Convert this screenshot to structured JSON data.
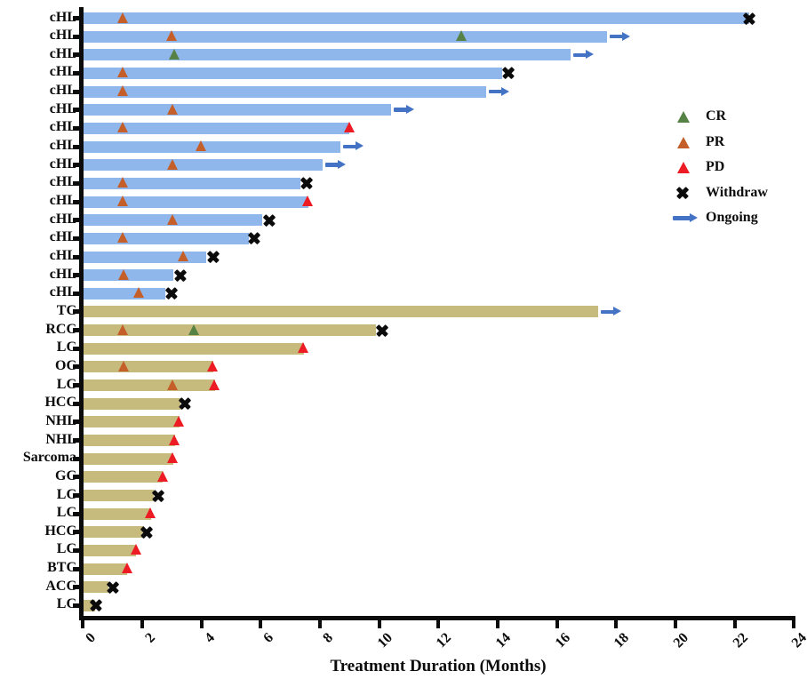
{
  "colors": {
    "bar_chl": "#8fb7eb",
    "bar_other": "#c6ba7d",
    "cr": "#568245",
    "pr": "#c55f2a",
    "pd": "#ed1c24",
    "withdraw": "#0b0b0b",
    "ongoing": "#4472c4",
    "axis": "#0b0b0b"
  },
  "legend": [
    {
      "id": "cr",
      "label": "CR",
      "marker": "triangle",
      "color": "#568245"
    },
    {
      "id": "pr",
      "label": "PR",
      "marker": "triangle",
      "color": "#c55f2a"
    },
    {
      "id": "pd",
      "label": "PD",
      "marker": "triangle",
      "color": "#ed1c24"
    },
    {
      "id": "withdraw",
      "label": "Withdraw",
      "marker": "x",
      "color": "#0b0b0b"
    },
    {
      "id": "ongoing",
      "label": "Ongoing",
      "marker": "arrow",
      "color": "#4472c4"
    }
  ],
  "chart_data": {
    "type": "bar",
    "orientation": "horizontal-swimmer",
    "title": "",
    "xlabel": "Treatment Duration (Months)",
    "ylabel": "",
    "xlim": [
      0,
      24
    ],
    "xticks": [
      0,
      2,
      4,
      6,
      8,
      10,
      12,
      14,
      16,
      18,
      20,
      22,
      24
    ],
    "grid": false,
    "legend_position": "right-upper",
    "rows": [
      {
        "label": "cHL",
        "group": "cHL",
        "duration": 22.5,
        "ongoing": false,
        "markers": [
          {
            "type": "PR",
            "x": 1.35
          },
          {
            "type": "Withdraw",
            "x": 22.5
          }
        ]
      },
      {
        "label": "cHL",
        "group": "cHL",
        "duration": 17.7,
        "ongoing": true,
        "markers": [
          {
            "type": "PR",
            "x": 3.0
          },
          {
            "type": "CR",
            "x": 12.8
          }
        ]
      },
      {
        "label": "cHL",
        "group": "cHL",
        "duration": 16.45,
        "ongoing": true,
        "markers": [
          {
            "type": "CR",
            "x": 3.1
          }
        ]
      },
      {
        "label": "cHL",
        "group": "cHL",
        "duration": 14.15,
        "ongoing": false,
        "markers": [
          {
            "type": "PR",
            "x": 1.35
          },
          {
            "type": "Withdraw",
            "x": 14.35
          }
        ]
      },
      {
        "label": "cHL",
        "group": "cHL",
        "duration": 13.6,
        "ongoing": true,
        "markers": [
          {
            "type": "PR",
            "x": 1.35
          }
        ]
      },
      {
        "label": "cHL",
        "group": "cHL",
        "duration": 10.4,
        "ongoing": true,
        "markers": [
          {
            "type": "PR",
            "x": 3.05
          }
        ]
      },
      {
        "label": "cHL",
        "group": "cHL",
        "duration": 9.0,
        "ongoing": false,
        "markers": [
          {
            "type": "PR",
            "x": 1.35
          },
          {
            "type": "PD",
            "x": 9.0
          }
        ]
      },
      {
        "label": "cHL",
        "group": "cHL",
        "duration": 8.7,
        "ongoing": true,
        "markers": [
          {
            "type": "PR",
            "x": 4.0
          }
        ]
      },
      {
        "label": "cHL",
        "group": "cHL",
        "duration": 8.1,
        "ongoing": true,
        "markers": [
          {
            "type": "PR",
            "x": 3.05
          }
        ]
      },
      {
        "label": "cHL",
        "group": "cHL",
        "duration": 7.35,
        "ongoing": false,
        "markers": [
          {
            "type": "PR",
            "x": 1.35
          },
          {
            "type": "Withdraw",
            "x": 7.55
          }
        ]
      },
      {
        "label": "cHL",
        "group": "cHL",
        "duration": 7.6,
        "ongoing": false,
        "markers": [
          {
            "type": "PR",
            "x": 1.35
          },
          {
            "type": "PD",
            "x": 7.6
          }
        ]
      },
      {
        "label": "cHL",
        "group": "cHL",
        "duration": 6.05,
        "ongoing": false,
        "markers": [
          {
            "type": "PR",
            "x": 3.05
          },
          {
            "type": "Withdraw",
            "x": 6.3
          }
        ]
      },
      {
        "label": "cHL",
        "group": "cHL",
        "duration": 5.6,
        "ongoing": false,
        "markers": [
          {
            "type": "PR",
            "x": 1.35
          },
          {
            "type": "Withdraw",
            "x": 5.78
          }
        ]
      },
      {
        "label": "cHL",
        "group": "cHL",
        "duration": 4.15,
        "ongoing": false,
        "markers": [
          {
            "type": "PR",
            "x": 3.4
          },
          {
            "type": "Withdraw",
            "x": 4.4
          }
        ]
      },
      {
        "label": "cHL",
        "group": "cHL",
        "duration": 3.05,
        "ongoing": false,
        "markers": [
          {
            "type": "PR",
            "x": 1.38
          },
          {
            "type": "Withdraw",
            "x": 3.28
          }
        ]
      },
      {
        "label": "cHL",
        "group": "cHL",
        "duration": 2.78,
        "ongoing": false,
        "markers": [
          {
            "type": "PR",
            "x": 1.9
          },
          {
            "type": "Withdraw",
            "x": 3.0
          }
        ]
      },
      {
        "label": "TC",
        "group": "other",
        "duration": 17.4,
        "ongoing": true,
        "markers": []
      },
      {
        "label": "RCC",
        "group": "other",
        "duration": 9.9,
        "ongoing": false,
        "markers": [
          {
            "type": "PR",
            "x": 1.35
          },
          {
            "type": "CR",
            "x": 3.75
          },
          {
            "type": "Withdraw",
            "x": 10.1
          }
        ]
      },
      {
        "label": "LC",
        "group": "other",
        "duration": 7.45,
        "ongoing": false,
        "markers": [
          {
            "type": "PD",
            "x": 7.45
          }
        ]
      },
      {
        "label": "OC",
        "group": "other",
        "duration": 4.4,
        "ongoing": false,
        "markers": [
          {
            "type": "PR",
            "x": 1.4
          },
          {
            "type": "PD",
            "x": 4.4
          }
        ]
      },
      {
        "label": "LC",
        "group": "other",
        "duration": 4.45,
        "ongoing": false,
        "markers": [
          {
            "type": "PR",
            "x": 3.05
          },
          {
            "type": "PD",
            "x": 4.45
          }
        ]
      },
      {
        "label": "HCC",
        "group": "other",
        "duration": 3.3,
        "ongoing": false,
        "markers": [
          {
            "type": "Withdraw",
            "x": 3.45
          }
        ]
      },
      {
        "label": "NHL",
        "group": "other",
        "duration": 3.25,
        "ongoing": false,
        "markers": [
          {
            "type": "PD",
            "x": 3.25
          }
        ]
      },
      {
        "label": "NHL",
        "group": "other",
        "duration": 3.1,
        "ongoing": false,
        "markers": [
          {
            "type": "PD",
            "x": 3.1
          }
        ]
      },
      {
        "label": "Sarcoma",
        "group": "other",
        "duration": 3.05,
        "ongoing": false,
        "markers": [
          {
            "type": "PD",
            "x": 3.05
          }
        ]
      },
      {
        "label": "GC",
        "group": "other",
        "duration": 2.7,
        "ongoing": false,
        "markers": [
          {
            "type": "PD",
            "x": 2.7
          }
        ]
      },
      {
        "label": "LC",
        "group": "other",
        "duration": 2.4,
        "ongoing": false,
        "markers": [
          {
            "type": "Withdraw",
            "x": 2.55
          }
        ]
      },
      {
        "label": "LC",
        "group": "other",
        "duration": 2.3,
        "ongoing": false,
        "markers": [
          {
            "type": "PD",
            "x": 2.3
          }
        ]
      },
      {
        "label": "HCC",
        "group": "other",
        "duration": 2.05,
        "ongoing": false,
        "markers": [
          {
            "type": "Withdraw",
            "x": 2.15
          }
        ]
      },
      {
        "label": "LC",
        "group": "other",
        "duration": 1.8,
        "ongoing": false,
        "markers": [
          {
            "type": "PD",
            "x": 1.8
          }
        ]
      },
      {
        "label": "BTC",
        "group": "other",
        "duration": 1.5,
        "ongoing": false,
        "markers": [
          {
            "type": "PD",
            "x": 1.5
          }
        ]
      },
      {
        "label": "ACC",
        "group": "other",
        "duration": 0.85,
        "ongoing": false,
        "markers": [
          {
            "type": "Withdraw",
            "x": 1.0
          }
        ]
      },
      {
        "label": "LC",
        "group": "other",
        "duration": 0.4,
        "ongoing": false,
        "markers": [
          {
            "type": "Withdraw",
            "x": 0.45
          }
        ]
      }
    ]
  }
}
